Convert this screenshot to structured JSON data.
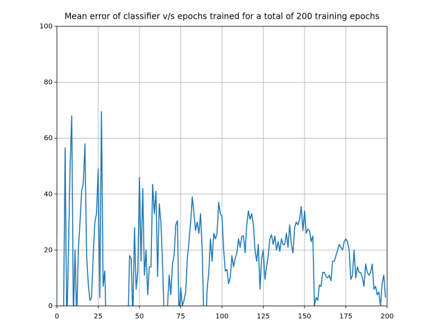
{
  "chart_data": {
    "type": "line",
    "title": "Mean error of classifier v/s epochs trained for a total of 200 training epochs",
    "x": [
      0,
      1,
      2,
      3,
      4,
      5,
      6,
      7,
      8,
      9,
      10,
      11,
      12,
      13,
      14,
      15,
      16,
      17,
      18,
      19,
      20,
      21,
      22,
      23,
      24,
      25,
      26,
      27,
      28,
      29,
      30,
      31,
      32,
      33,
      34,
      35,
      36,
      37,
      38,
      39,
      40,
      41,
      42,
      43,
      44,
      45,
      46,
      47,
      48,
      49,
      50,
      51,
      52,
      53,
      54,
      55,
      56,
      57,
      58,
      59,
      60,
      61,
      62,
      63,
      64,
      65,
      66,
      67,
      68,
      69,
      70,
      71,
      72,
      73,
      74,
      75,
      76,
      77,
      78,
      79,
      80,
      81,
      82,
      83,
      84,
      85,
      86,
      87,
      88,
      89,
      90,
      91,
      92,
      93,
      94,
      95,
      96,
      97,
      98,
      99,
      100,
      101,
      102,
      103,
      104,
      105,
      106,
      107,
      108,
      109,
      110,
      111,
      112,
      113,
      114,
      115,
      116,
      117,
      118,
      119,
      120,
      121,
      122,
      123,
      124,
      125,
      126,
      127,
      128,
      129,
      130,
      131,
      132,
      133,
      134,
      135,
      136,
      137,
      138,
      139,
      140,
      141,
      142,
      143,
      144,
      145,
      146,
      147,
      148,
      149,
      150,
      151,
      152,
      153,
      154,
      155,
      156,
      157,
      158,
      159,
      160,
      161,
      162,
      163,
      164,
      165,
      166,
      167,
      168,
      169,
      170,
      171,
      172,
      173,
      174,
      175,
      176,
      177,
      178,
      179,
      180,
      181,
      182,
      183,
      184,
      185,
      186,
      187,
      188,
      189,
      190,
      191,
      192,
      193,
      194,
      195,
      196,
      197,
      198,
      199
    ],
    "series": [
      {
        "color": "#1f77b4",
        "values": [
          -10,
          -10,
          -10,
          -10,
          -5,
          56.5,
          -10,
          20,
          50,
          68,
          -5,
          20,
          -5,
          20,
          30,
          41,
          44,
          58,
          18,
          8,
          2,
          3,
          18,
          30,
          33,
          49,
          3,
          69.5,
          7,
          12.5,
          -10,
          -10,
          -10,
          -10,
          -10,
          -10,
          -10,
          -10,
          -10,
          -10,
          -10,
          -10,
          -10,
          -10,
          18,
          17,
          -5,
          28,
          6,
          12,
          46,
          16,
          42,
          11,
          20,
          4,
          14,
          14,
          43.5,
          33,
          41,
          10.5,
          36.5,
          30,
          15,
          -5,
          -10,
          0,
          11,
          4,
          15,
          18,
          29,
          30.5,
          -5,
          6.5,
          0,
          2,
          5,
          17,
          23,
          30,
          39,
          33,
          27,
          30,
          26,
          33,
          20,
          -5,
          -10,
          6,
          12,
          24,
          16,
          26,
          24,
          26,
          37,
          33,
          32,
          20,
          12.5,
          13,
          8,
          10,
          18,
          14,
          17,
          19,
          24,
          21,
          25,
          25,
          19,
          29,
          34,
          31,
          33,
          29,
          20,
          16,
          22,
          6,
          17,
          20,
          9.5,
          14,
          18,
          24,
          25.5,
          22,
          25,
          20,
          23,
          19.5,
          24,
          22,
          22,
          26,
          21,
          29,
          22,
          19,
          28,
          30,
          29,
          31,
          35.5,
          27,
          34,
          26,
          27.5,
          27,
          23,
          25,
          0,
          3,
          2,
          7.5,
          7,
          12,
          12,
          10.5,
          10,
          11,
          9,
          16,
          16,
          18,
          20,
          22,
          21,
          20,
          23,
          24,
          23,
          20,
          9.5,
          11,
          20,
          10,
          14,
          12,
          12,
          10,
          7,
          15,
          12,
          11,
          12,
          15,
          6,
          7,
          4,
          5,
          0,
          8,
          11,
          3
        ]
      }
    ],
    "xlim": [
      0,
      200
    ],
    "ylim": [
      0,
      100
    ],
    "xticks": [
      0,
      25,
      50,
      75,
      100,
      125,
      150,
      175,
      200
    ],
    "yticks": [
      0,
      20,
      40,
      60,
      80,
      100
    ],
    "grid": true
  }
}
